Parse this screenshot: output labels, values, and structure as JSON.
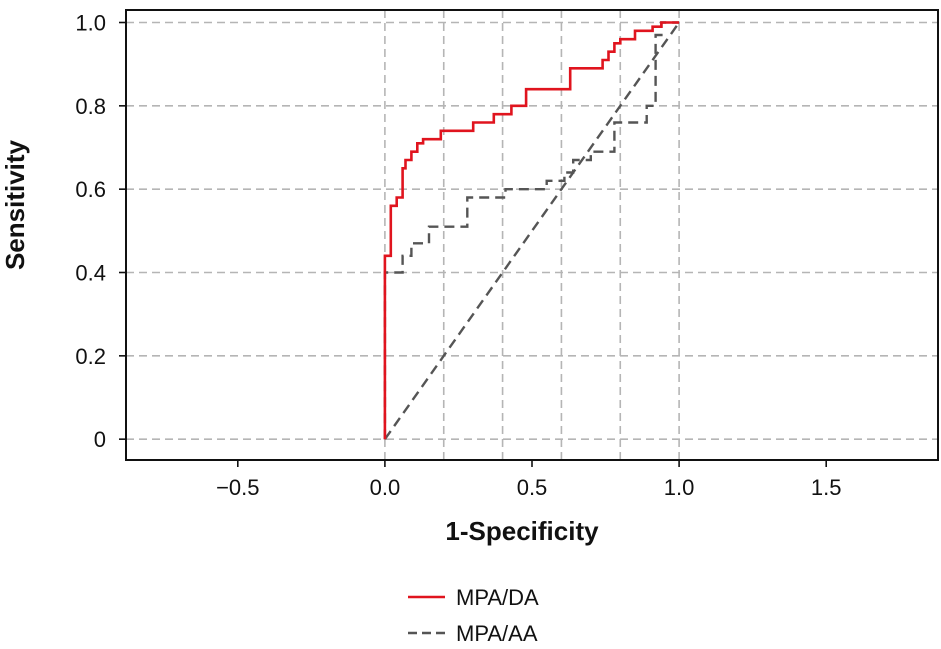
{
  "chart_data": {
    "type": "line",
    "title": "",
    "xlabel": "1-Specificity",
    "ylabel": "Sensitivity",
    "xlim": [
      -0.88,
      1.88
    ],
    "ylim": [
      -0.05,
      1.03
    ],
    "xticks": [
      -0.5,
      0.0,
      0.5,
      1.0,
      1.5
    ],
    "xtick_labels": [
      "−0.5",
      "0.0",
      "0.5",
      "1.0",
      "1.5"
    ],
    "yticks": [
      0,
      0.2,
      0.4,
      0.6,
      0.8,
      1.0
    ],
    "ytick_labels": [
      "0",
      "0.2",
      "0.4",
      "0.6",
      "0.8",
      "1.0"
    ],
    "grid": {
      "style": "dashed",
      "x": [
        0.0,
        0.2,
        0.4,
        0.6,
        0.8,
        1.0
      ],
      "y": [
        0,
        0.2,
        0.4,
        0.6,
        0.8,
        1.0
      ]
    },
    "legend_position": "bottom-center",
    "series": [
      {
        "name": "MPA/DA",
        "color": "#e0141e",
        "style": "solid",
        "x": [
          0,
          0,
          0.02,
          0.02,
          0.04,
          0.04,
          0.06,
          0.06,
          0.07,
          0.07,
          0.09,
          0.09,
          0.11,
          0.11,
          0.13,
          0.13,
          0.19,
          0.19,
          0.3,
          0.3,
          0.37,
          0.37,
          0.43,
          0.43,
          0.48,
          0.48,
          0.63,
          0.63,
          0.74,
          0.74,
          0.76,
          0.76,
          0.78,
          0.78,
          0.8,
          0.8,
          0.85,
          0.85,
          0.91,
          0.91,
          0.94,
          0.94,
          1.0
        ],
        "y": [
          0,
          0.44,
          0.44,
          0.56,
          0.56,
          0.58,
          0.58,
          0.65,
          0.65,
          0.67,
          0.67,
          0.69,
          0.69,
          0.71,
          0.71,
          0.72,
          0.72,
          0.74,
          0.74,
          0.76,
          0.76,
          0.78,
          0.78,
          0.8,
          0.8,
          0.84,
          0.84,
          0.89,
          0.89,
          0.91,
          0.91,
          0.93,
          0.93,
          0.95,
          0.95,
          0.96,
          0.96,
          0.98,
          0.98,
          0.99,
          0.99,
          1.0,
          1.0
        ]
      },
      {
        "name": "MPA/AA",
        "color": "#555555",
        "style": "dashed",
        "x": [
          0,
          0,
          0.06,
          0.06,
          0.09,
          0.09,
          0.15,
          0.15,
          0.28,
          0.28,
          0.41,
          0.41,
          0.55,
          0.55,
          0.61,
          0.61,
          0.64,
          0.64,
          0.7,
          0.7,
          0.78,
          0.78,
          0.89,
          0.89,
          0.92,
          0.92,
          0.94,
          0.94,
          1.0
        ],
        "y": [
          0,
          0.4,
          0.4,
          0.44,
          0.44,
          0.47,
          0.47,
          0.51,
          0.51,
          0.58,
          0.58,
          0.6,
          0.6,
          0.62,
          0.62,
          0.64,
          0.64,
          0.67,
          0.67,
          0.69,
          0.69,
          0.76,
          0.76,
          0.8,
          0.8,
          0.97,
          0.97,
          1.0,
          1.0
        ]
      },
      {
        "name": "",
        "color": "#555555",
        "style": "dashed",
        "x": [
          0,
          1
        ],
        "y": [
          0,
          1
        ]
      }
    ]
  }
}
